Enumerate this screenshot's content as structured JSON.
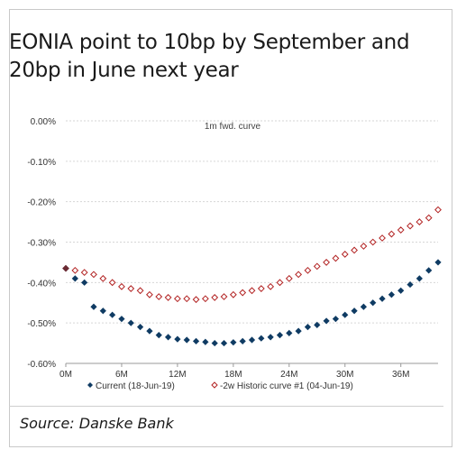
{
  "title": "EONIA point to 10bp by September and 20bp in June next year",
  "source": "Source: Danske Bank",
  "chart_data": {
    "type": "scatter",
    "title": "1m fwd. curve",
    "ylim": [
      -0.6,
      0.0
    ],
    "xlim": [
      0,
      40
    ],
    "yticks": [
      0.0,
      -0.1,
      -0.2,
      -0.3,
      -0.4,
      -0.5,
      -0.6
    ],
    "ytick_labels": [
      "0.00%",
      "-0.10%",
      "-0.20%",
      "-0.30%",
      "-0.40%",
      "-0.50%",
      "-0.60%"
    ],
    "xticks": [
      0,
      6,
      12,
      18,
      24,
      30,
      36
    ],
    "xtick_labels": [
      "0M",
      "6M",
      "12M",
      "18M",
      "24M",
      "30M",
      "36M"
    ],
    "grid": "horizontal",
    "legend_position": "bottom",
    "series": [
      {
        "name": "Current (18-Jun-19)",
        "marker": "filled-diamond",
        "color": "#0f3b63",
        "x": [
          0,
          1,
          2,
          3,
          4,
          5,
          6,
          7,
          8,
          9,
          10,
          11,
          12,
          13,
          14,
          15,
          16,
          17,
          18,
          19,
          20,
          21,
          22,
          23,
          24,
          25,
          26,
          27,
          28,
          29,
          30,
          31,
          32,
          33,
          34,
          35,
          36,
          37,
          38,
          39,
          40
        ],
        "y": [
          -0.365,
          -0.39,
          -0.4,
          -0.46,
          -0.47,
          -0.48,
          -0.49,
          -0.5,
          -0.51,
          -0.52,
          -0.53,
          -0.535,
          -0.54,
          -0.542,
          -0.545,
          -0.547,
          -0.55,
          -0.55,
          -0.548,
          -0.545,
          -0.542,
          -0.538,
          -0.535,
          -0.53,
          -0.525,
          -0.52,
          -0.51,
          -0.505,
          -0.495,
          -0.49,
          -0.48,
          -0.47,
          -0.46,
          -0.45,
          -0.44,
          -0.43,
          -0.42,
          -0.405,
          -0.39,
          -0.37,
          -0.35
        ]
      },
      {
        "name": "-2w Historic curve #1 (04-Jun-19)",
        "marker": "hollow-diamond",
        "color": "#b22222",
        "x": [
          0,
          1,
          2,
          3,
          4,
          5,
          6,
          7,
          8,
          9,
          10,
          11,
          12,
          13,
          14,
          15,
          16,
          17,
          18,
          19,
          20,
          21,
          22,
          23,
          24,
          25,
          26,
          27,
          28,
          29,
          30,
          31,
          32,
          33,
          34,
          35,
          36,
          37,
          38,
          39,
          40
        ],
        "y": [
          -0.365,
          -0.37,
          -0.375,
          -0.38,
          -0.39,
          -0.4,
          -0.41,
          -0.415,
          -0.42,
          -0.43,
          -0.435,
          -0.437,
          -0.44,
          -0.44,
          -0.442,
          -0.44,
          -0.437,
          -0.435,
          -0.43,
          -0.425,
          -0.42,
          -0.415,
          -0.41,
          -0.4,
          -0.39,
          -0.38,
          -0.37,
          -0.36,
          -0.35,
          -0.34,
          -0.33,
          -0.32,
          -0.31,
          -0.3,
          -0.29,
          -0.28,
          -0.27,
          -0.26,
          -0.25,
          -0.24,
          -0.22
        ]
      }
    ]
  }
}
